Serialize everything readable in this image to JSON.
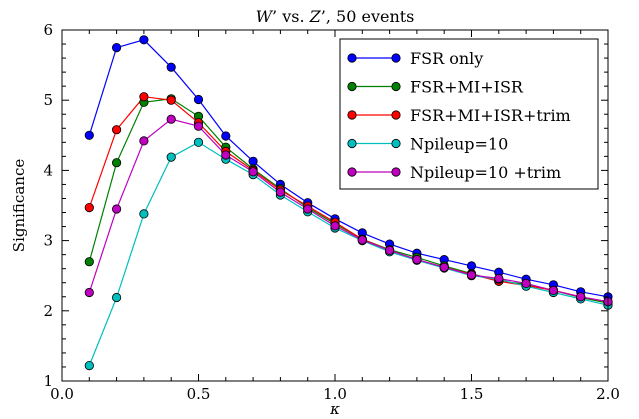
{
  "chart_data": {
    "type": "line",
    "title": "W’ vs. Z’, 50 events",
    "xlabel": "κ",
    "ylabel": "Significance",
    "xlim": [
      0.0,
      2.0
    ],
    "ylim": [
      1,
      6
    ],
    "xticks": [
      0.0,
      0.5,
      1.0,
      1.5,
      2.0
    ],
    "xtick_labels": [
      "0.0",
      "0.5",
      "1.0",
      "1.5",
      "2.0"
    ],
    "yticks": [
      1,
      2,
      3,
      4,
      5,
      6
    ],
    "ytick_labels": [
      "1",
      "2",
      "3",
      "4",
      "5",
      "6"
    ],
    "grid": false,
    "legend_position": "top-right",
    "x": [
      0.1,
      0.2,
      0.3,
      0.4,
      0.5,
      0.6,
      0.7,
      0.8,
      0.9,
      1.0,
      1.1,
      1.2,
      1.3,
      1.4,
      1.5,
      1.6,
      1.7,
      1.8,
      1.9,
      2.0
    ],
    "series": [
      {
        "name": "FSR only",
        "color": "#0000ff",
        "values": [
          4.5,
          5.75,
          5.86,
          5.47,
          5.01,
          4.49,
          4.13,
          3.8,
          3.54,
          3.31,
          3.11,
          2.95,
          2.82,
          2.73,
          2.64,
          2.55,
          2.45,
          2.37,
          2.27,
          2.2
        ]
      },
      {
        "name": "FSR+MI+ISR",
        "color": "#008000",
        "values": [
          2.7,
          4.11,
          4.97,
          5.02,
          4.77,
          4.33,
          4.02,
          3.74,
          3.47,
          3.24,
          3.02,
          2.87,
          2.76,
          2.64,
          2.53,
          2.42,
          2.38,
          2.29,
          2.19,
          2.11
        ]
      },
      {
        "name": "FSR+MI+ISR+trim",
        "color": "#ff0000",
        "values": [
          3.47,
          4.58,
          5.05,
          5.0,
          4.68,
          4.27,
          4.0,
          3.72,
          3.49,
          3.26,
          3.02,
          2.86,
          2.73,
          2.62,
          2.52,
          2.42,
          2.36,
          2.29,
          2.2,
          2.13
        ]
      },
      {
        "name": "Npileup=10",
        "color": "#00bfbf",
        "values": [
          1.22,
          2.19,
          3.38,
          4.19,
          4.4,
          4.16,
          3.94,
          3.65,
          3.41,
          3.18,
          3.0,
          2.84,
          2.72,
          2.61,
          2.5,
          2.45,
          2.35,
          2.26,
          2.17,
          2.08
        ]
      },
      {
        "name": "Npileup=10 +trim",
        "color": "#bf00bf",
        "values": [
          2.26,
          3.45,
          4.42,
          4.73,
          4.63,
          4.22,
          3.98,
          3.69,
          3.45,
          3.21,
          3.01,
          2.86,
          2.73,
          2.62,
          2.51,
          2.46,
          2.39,
          2.29,
          2.2,
          2.13
        ]
      }
    ]
  }
}
